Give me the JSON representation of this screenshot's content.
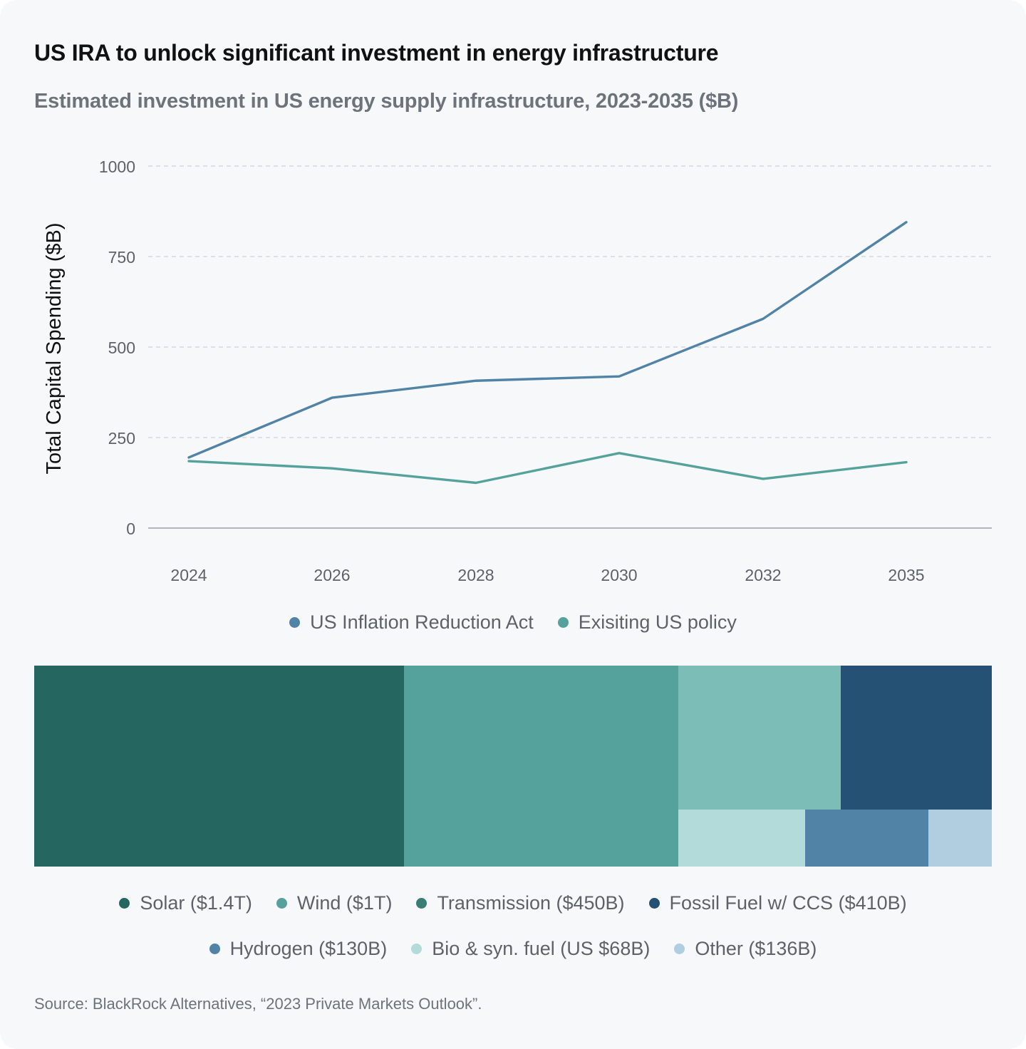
{
  "title": "US IRA to unlock significant investment in energy infrastructure",
  "subtitle": "Estimated investment in US energy supply infrastructure, 2023-2035 ($B)",
  "source": "Source: BlackRock Alternatives, “2023 Private Markets Outlook”.",
  "chart_data": [
    {
      "type": "line",
      "title": "Estimated investment in US energy supply infrastructure, 2023-2035 ($B)",
      "xlabel": "",
      "ylabel": "Total Capital Spending ($B)",
      "categories": [
        "2024",
        "2026",
        "2028",
        "2030",
        "2032",
        "2035"
      ],
      "ylim": [
        0,
        1000
      ],
      "yticks": [
        "0",
        "250",
        "500",
        "750",
        "1000"
      ],
      "grid": true,
      "legend_position": "bottom-center",
      "series": [
        {
          "name": "US Inflation Reduction Act",
          "color": "#5183a6",
          "values": [
            195,
            360,
            407,
            419,
            578,
            845
          ]
        },
        {
          "name": "Exisiting US policy",
          "color": "#55a19b",
          "values": [
            185,
            165,
            125,
            207,
            136,
            182
          ]
        }
      ]
    },
    {
      "type": "treemap",
      "title": "",
      "items": [
        {
          "name": "Solar",
          "label": "Solar ($1.4T)",
          "value": 1400,
          "color": "#256660"
        },
        {
          "name": "Wind",
          "label": "Wind ($1T)",
          "value": 1000,
          "color": "#55a19b"
        },
        {
          "name": "Transmission",
          "label": "Transmission ($450B)",
          "value": 450,
          "color": "#7dbdb7"
        },
        {
          "name": "Fossil Fuel w/ CCS",
          "label": "Fossil Fuel w/ CCS ($410B)",
          "value": 410,
          "color": "#255274"
        },
        {
          "name": "Hydrogen",
          "label": "Hydrogen ($130B)",
          "value": 130,
          "color": "#5183a6"
        },
        {
          "name": "Bio & syn. fuel",
          "label": "Bio & syn. fuel (US $68B)",
          "value": 68,
          "color": "#b2dbd9"
        },
        {
          "name": "Other",
          "label": "Other ($136B)",
          "value": 136,
          "color": "#b1cde0"
        }
      ],
      "legend_colors": [
        "#256660",
        "#55a19b",
        "#3a7d74",
        "#255274",
        "#5183a6",
        "#b2dbd9",
        "#b1cde0"
      ]
    }
  ]
}
